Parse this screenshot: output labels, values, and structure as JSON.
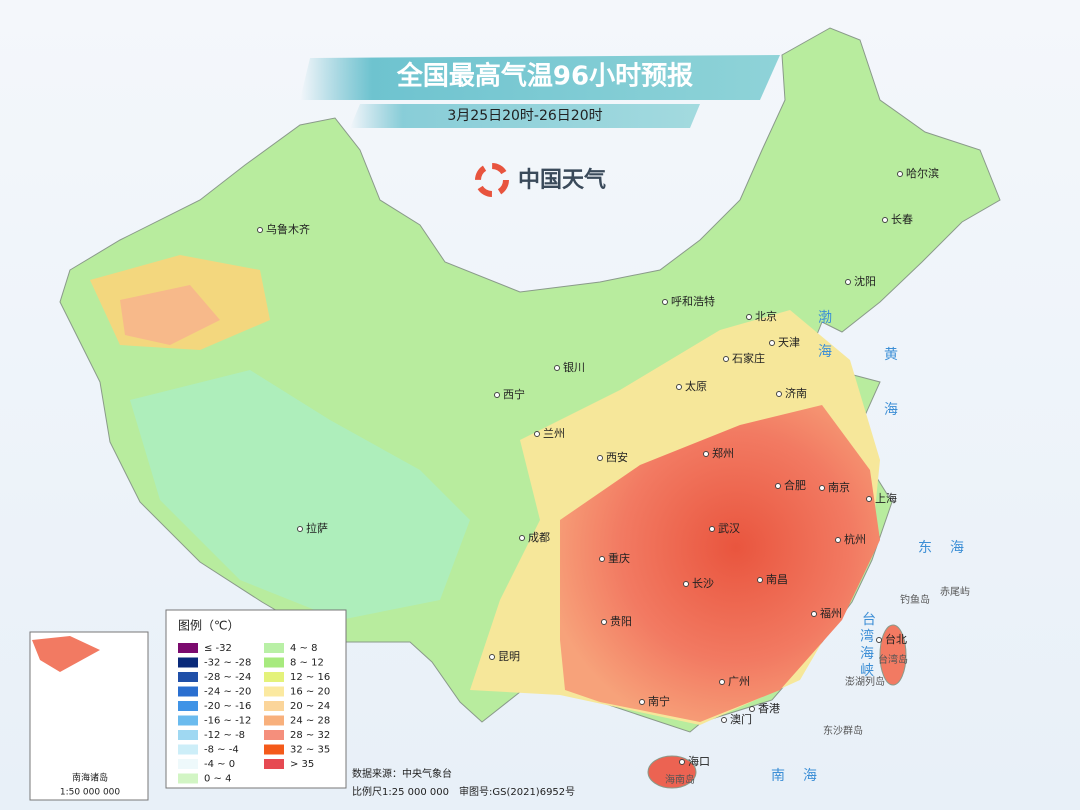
{
  "header": {
    "title": "全国最高气温96小时预报",
    "subtitle": "3月25日20时-26日20时",
    "logo": "中国天气"
  },
  "cities": [
    "乌鲁木齐",
    "哈尔滨",
    "长春",
    "沈阳",
    "呼和浩特",
    "北京",
    "天津",
    "石家庄",
    "太原",
    "济南",
    "银川",
    "西宁",
    "兰州",
    "西安",
    "郑州",
    "合肥",
    "南京",
    "上海",
    "武汉",
    "杭州",
    "成都",
    "重庆",
    "长沙",
    "南昌",
    "福州",
    "贵阳",
    "台北",
    "昆明",
    "南宁",
    "广州",
    "香港",
    "澳门",
    "海口",
    "拉萨"
  ],
  "islands": [
    "台湾岛",
    "海南岛",
    "钓鱼岛",
    "赤尾屿",
    "澎湖列岛",
    "东沙群岛"
  ],
  "seas": [
    "渤",
    "海",
    "黄",
    "海",
    "东　海",
    "南　海",
    "台",
    "湾",
    "海",
    "峡"
  ],
  "legend": {
    "title": "图例（℃）",
    "items": [
      {
        "label": "≤ -32",
        "color": "#7b0a6e"
      },
      {
        "label": "-32 ~ -28",
        "color": "#0a2a7a"
      },
      {
        "label": "-28 ~ -24",
        "color": "#1f4fa8"
      },
      {
        "label": "-24 ~ -20",
        "color": "#2a6fd0"
      },
      {
        "label": "-20 ~ -16",
        "color": "#3f93e6"
      },
      {
        "label": "-16 ~ -12",
        "color": "#6bbbee"
      },
      {
        "label": "-12 ~ -8",
        "color": "#9fd8f2"
      },
      {
        "label": "-8 ~ -4",
        "color": "#cdeef8"
      },
      {
        "label": "-4 ~ 0",
        "color": "#eef9fb"
      },
      {
        "label": "0 ~ 4",
        "color": "#d2f5c4"
      },
      {
        "label": "4 ~ 8",
        "color": "#b9f0a6"
      },
      {
        "label": "8 ~ 12",
        "color": "#a7ea7e"
      },
      {
        "label": "12 ~ 16",
        "color": "#e4f27a"
      },
      {
        "label": "16 ~ 20",
        "color": "#fbe9a0"
      },
      {
        "label": "20 ~ 24",
        "color": "#fbd59a"
      },
      {
        "label": "24 ~ 28",
        "color": "#f8b07c"
      },
      {
        "label": "28 ~ 32",
        "color": "#f58f7c"
      },
      {
        "label": "32 ~ 35",
        "color": "#f45a1a"
      },
      {
        "label": "> 35",
        "color": "#e64a52"
      }
    ]
  },
  "footer": {
    "source": "数据来源：中央气象台",
    "scale": "比例尺1:25 000 000　审图号:GS(2021)6952号"
  },
  "inset": {
    "title": "南海诸岛",
    "scale": "1:50 000 000"
  }
}
